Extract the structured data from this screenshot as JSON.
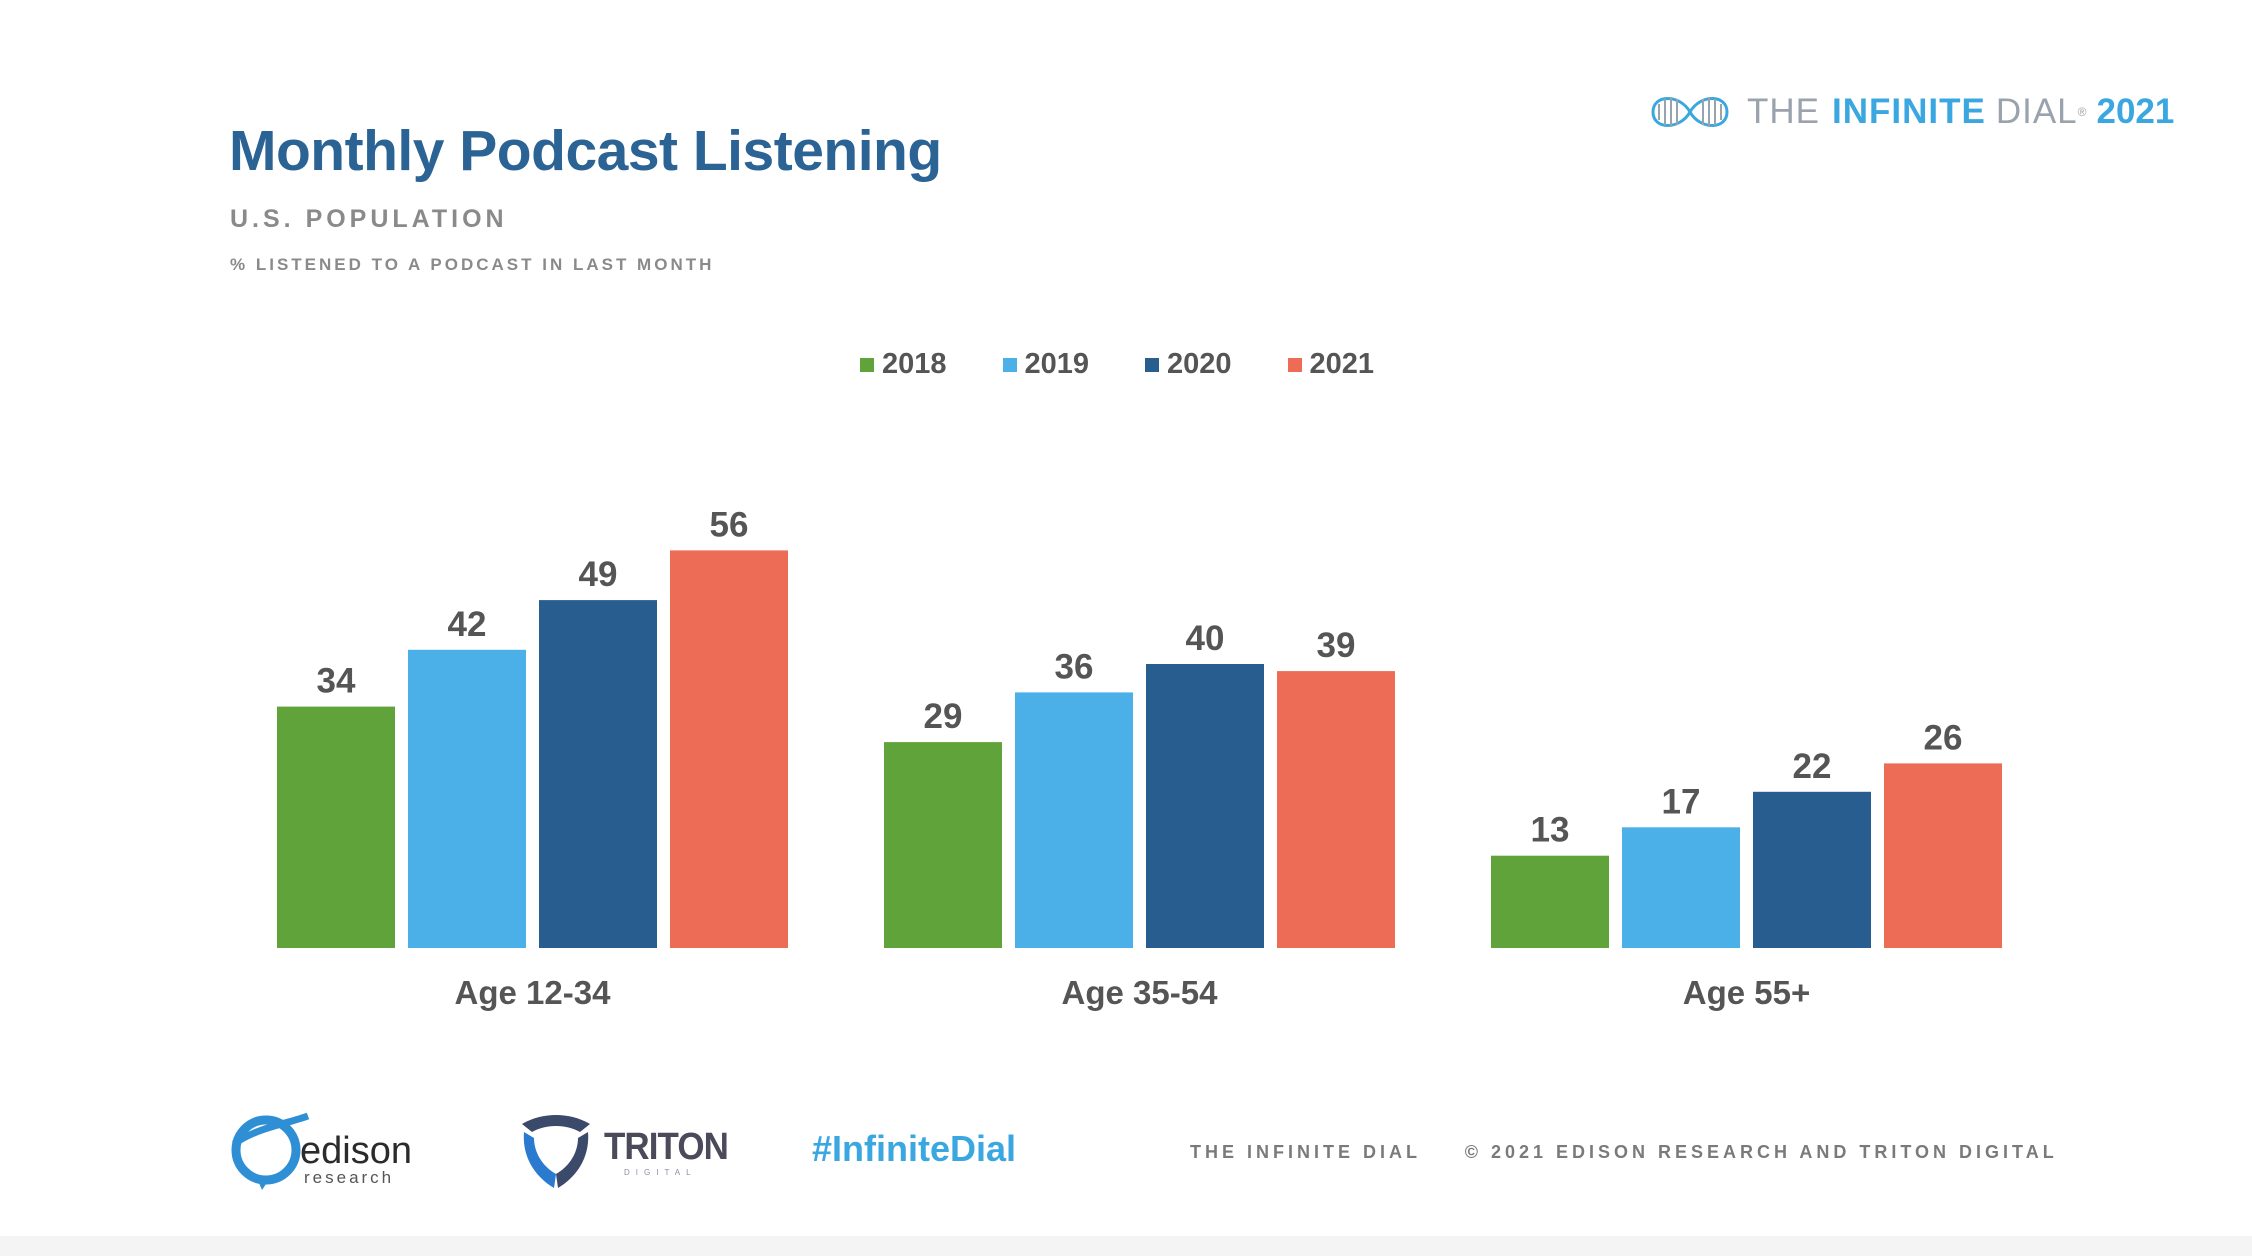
{
  "title": "Monthly Podcast Listening",
  "subtitle": "U.S. POPULATION",
  "subtitle2": "% LISTENED TO A PODCAST IN LAST MONTH",
  "brand": {
    "prefix": "THE",
    "name": "INFINITE",
    "suffix": "DIAL",
    "reg": "®",
    "year": "2021"
  },
  "colors": {
    "title": "#2a6394",
    "2018": "#5fa33a",
    "2019": "#4cb0e8",
    "2020": "#275d8f",
    "2021": "#ec6c55",
    "brand_accent": "#3ba7e0"
  },
  "chart_data": {
    "type": "bar",
    "title": "Monthly Podcast Listening",
    "subtitle": "U.S. POPULATION",
    "categories": [
      "Age 12-34",
      "Age 35-54",
      "Age 55+"
    ],
    "series": [
      {
        "name": "2018",
        "color": "#5fa33a",
        "values": [
          34,
          29,
          13
        ]
      },
      {
        "name": "2019",
        "color": "#4cb0e8",
        "values": [
          42,
          36,
          17
        ]
      },
      {
        "name": "2020",
        "color": "#275d8f",
        "values": [
          49,
          40,
          22
        ]
      },
      {
        "name": "2021",
        "color": "#ec6c55",
        "values": [
          56,
          39,
          26
        ]
      }
    ],
    "xlabel": "",
    "ylabel": "",
    "ylim": [
      0,
      60
    ],
    "grid": false,
    "legend": "top-center",
    "data_labels": true
  },
  "footer": {
    "edison_logo_text": "edison",
    "edison_logo_sub": "research",
    "triton_logo_text": "TRITON",
    "triton_logo_sub": "DIGITAL",
    "hashtag": "#InfiniteDial",
    "left_text": "THE INFINITE DIAL",
    "right_text": "© 2021 EDISON RESEARCH AND TRITON DIGITAL"
  }
}
